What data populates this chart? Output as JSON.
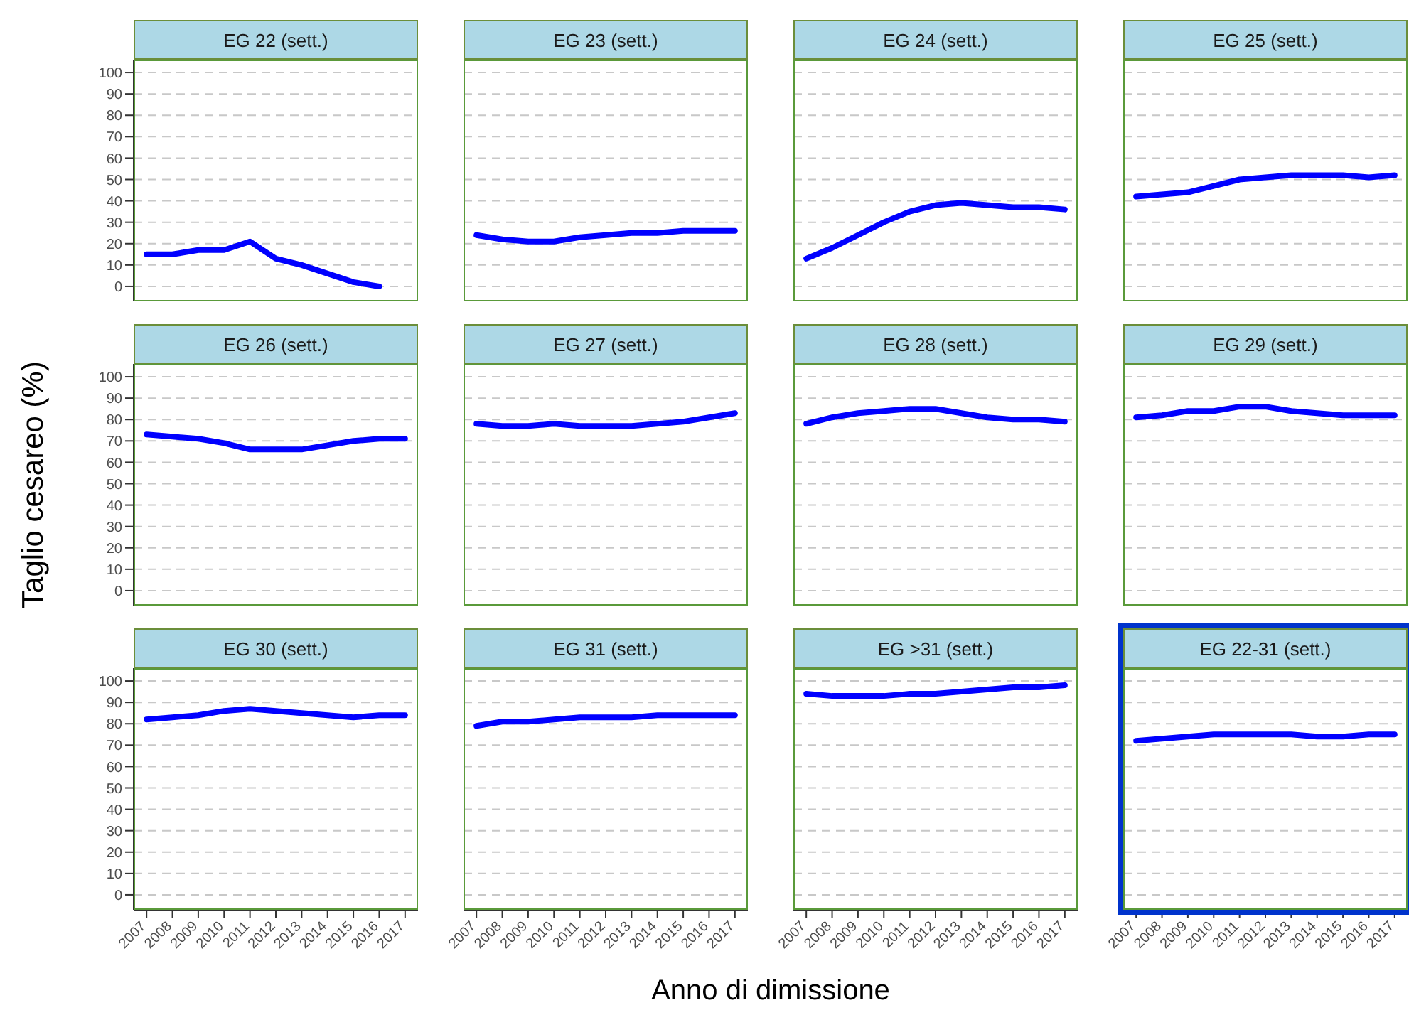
{
  "chart_data": [
    {
      "type": "line",
      "title": "EG 22 (sett.)",
      "x": [
        2007,
        2008,
        2009,
        2010,
        2011,
        2012,
        2013,
        2014,
        2015,
        2016
      ],
      "values": [
        15,
        15,
        17,
        17,
        21,
        13,
        10,
        6,
        2,
        0
      ],
      "color": "#0000ff",
      "xlim": [
        2006.5,
        2017.5
      ],
      "xticks": [
        2007,
        2008,
        2009,
        2010,
        2011,
        2012,
        2013,
        2014,
        2015,
        2016,
        2017
      ],
      "ylim": [
        -7,
        106
      ],
      "yticks": [
        0,
        10,
        20,
        30,
        40,
        50,
        60,
        70,
        80,
        90,
        100
      ],
      "grid": "y",
      "tick_labels": "y"
    },
    {
      "type": "line",
      "title": "EG 23 (sett.)",
      "x": [
        2007,
        2008,
        2009,
        2010,
        2011,
        2012,
        2013,
        2014,
        2015,
        2016,
        2017
      ],
      "values": [
        24,
        22,
        21,
        21,
        23,
        24,
        25,
        25,
        26,
        26,
        26
      ],
      "color": "#0000ff",
      "xlim": [
        2006.5,
        2017.5
      ],
      "xticks": [
        2007,
        2008,
        2009,
        2010,
        2011,
        2012,
        2013,
        2014,
        2015,
        2016,
        2017
      ],
      "ylim": [
        -7,
        106
      ],
      "yticks": [
        0,
        10,
        20,
        30,
        40,
        50,
        60,
        70,
        80,
        90,
        100
      ],
      "grid": "y",
      "tick_labels": false
    },
    {
      "type": "line",
      "title": "EG 24 (sett.)",
      "x": [
        2007,
        2008,
        2009,
        2010,
        2011,
        2012,
        2013,
        2014,
        2015,
        2016,
        2017
      ],
      "values": [
        13,
        18,
        24,
        30,
        35,
        38,
        39,
        38,
        37,
        37,
        36
      ],
      "color": "#0000ff",
      "xlim": [
        2006.5,
        2017.5
      ],
      "xticks": [
        2007,
        2008,
        2009,
        2010,
        2011,
        2012,
        2013,
        2014,
        2015,
        2016,
        2017
      ],
      "ylim": [
        -7,
        106
      ],
      "yticks": [
        0,
        10,
        20,
        30,
        40,
        50,
        60,
        70,
        80,
        90,
        100
      ],
      "grid": "y",
      "tick_labels": false
    },
    {
      "type": "line",
      "title": "EG 25 (sett.)",
      "x": [
        2007,
        2008,
        2009,
        2010,
        2011,
        2012,
        2013,
        2014,
        2015,
        2016,
        2017
      ],
      "values": [
        42,
        43,
        44,
        47,
        50,
        51,
        52,
        52,
        52,
        51,
        52
      ],
      "color": "#0000ff",
      "xlim": [
        2006.5,
        2017.5
      ],
      "xticks": [
        2007,
        2008,
        2009,
        2010,
        2011,
        2012,
        2013,
        2014,
        2015,
        2016,
        2017
      ],
      "ylim": [
        -7,
        106
      ],
      "yticks": [
        0,
        10,
        20,
        30,
        40,
        50,
        60,
        70,
        80,
        90,
        100
      ],
      "grid": "y",
      "tick_labels": false
    },
    {
      "type": "line",
      "title": "EG 26 (sett.)",
      "ylabel": "Taglio cesareo (%)",
      "x": [
        2007,
        2008,
        2009,
        2010,
        2011,
        2012,
        2013,
        2014,
        2015,
        2016,
        2017
      ],
      "values": [
        73,
        72,
        71,
        69,
        66,
        66,
        66,
        68,
        70,
        71,
        71
      ],
      "color": "#0000ff",
      "xlim": [
        2006.5,
        2017.5
      ],
      "xticks": [
        2007,
        2008,
        2009,
        2010,
        2011,
        2012,
        2013,
        2014,
        2015,
        2016,
        2017
      ],
      "ylim": [
        -7,
        106
      ],
      "yticks": [
        0,
        10,
        20,
        30,
        40,
        50,
        60,
        70,
        80,
        90,
        100
      ],
      "grid": "y",
      "tick_labels": "y"
    },
    {
      "type": "line",
      "title": "EG 27 (sett.)",
      "x": [
        2007,
        2008,
        2009,
        2010,
        2011,
        2012,
        2013,
        2014,
        2015,
        2016,
        2017
      ],
      "values": [
        78,
        77,
        77,
        78,
        77,
        77,
        77,
        78,
        79,
        81,
        83
      ],
      "color": "#0000ff",
      "xlim": [
        2006.5,
        2017.5
      ],
      "xticks": [
        2007,
        2008,
        2009,
        2010,
        2011,
        2012,
        2013,
        2014,
        2015,
        2016,
        2017
      ],
      "ylim": [
        -7,
        106
      ],
      "yticks": [
        0,
        10,
        20,
        30,
        40,
        50,
        60,
        70,
        80,
        90,
        100
      ],
      "grid": "y",
      "tick_labels": false
    },
    {
      "type": "line",
      "title": "EG 28 (sett.)",
      "x": [
        2007,
        2008,
        2009,
        2010,
        2011,
        2012,
        2013,
        2014,
        2015,
        2016,
        2017
      ],
      "values": [
        78,
        81,
        83,
        84,
        85,
        85,
        83,
        81,
        80,
        80,
        79
      ],
      "color": "#0000ff",
      "xlim": [
        2006.5,
        2017.5
      ],
      "xticks": [
        2007,
        2008,
        2009,
        2010,
        2011,
        2012,
        2013,
        2014,
        2015,
        2016,
        2017
      ],
      "ylim": [
        -7,
        106
      ],
      "yticks": [
        0,
        10,
        20,
        30,
        40,
        50,
        60,
        70,
        80,
        90,
        100
      ],
      "grid": "y",
      "tick_labels": false
    },
    {
      "type": "line",
      "title": "EG 29 (sett.)",
      "x": [
        2007,
        2008,
        2009,
        2010,
        2011,
        2012,
        2013,
        2014,
        2015,
        2016,
        2017
      ],
      "values": [
        81,
        82,
        84,
        84,
        86,
        86,
        84,
        83,
        82,
        82,
        82
      ],
      "color": "#0000ff",
      "xlim": [
        2006.5,
        2017.5
      ],
      "xticks": [
        2007,
        2008,
        2009,
        2010,
        2011,
        2012,
        2013,
        2014,
        2015,
        2016,
        2017
      ],
      "ylim": [
        -7,
        106
      ],
      "yticks": [
        0,
        10,
        20,
        30,
        40,
        50,
        60,
        70,
        80,
        90,
        100
      ],
      "grid": "y",
      "tick_labels": false
    },
    {
      "type": "line",
      "title": "EG 30 (sett.)",
      "x": [
        2007,
        2008,
        2009,
        2010,
        2011,
        2012,
        2013,
        2014,
        2015,
        2016,
        2017
      ],
      "values": [
        82,
        83,
        84,
        86,
        87,
        86,
        85,
        84,
        83,
        84,
        84
      ],
      "color": "#0000ff",
      "xlim": [
        2006.5,
        2017.5
      ],
      "xticks": [
        2007,
        2008,
        2009,
        2010,
        2011,
        2012,
        2013,
        2014,
        2015,
        2016,
        2017
      ],
      "ylim": [
        -7,
        106
      ],
      "yticks": [
        0,
        10,
        20,
        30,
        40,
        50,
        60,
        70,
        80,
        90,
        100
      ],
      "grid": "y"
    },
    {
      "type": "line",
      "title": "EG 31 (sett.)",
      "xlabel": "Anno di dimissione",
      "x": [
        2007,
        2008,
        2009,
        2010,
        2011,
        2012,
        2013,
        2014,
        2015,
        2016,
        2017
      ],
      "values": [
        79,
        81,
        81,
        82,
        83,
        83,
        83,
        84,
        84,
        84,
        84
      ],
      "color": "#0000ff",
      "xlim": [
        2006.5,
        2017.5
      ],
      "xticks": [
        2007,
        2008,
        2009,
        2010,
        2011,
        2012,
        2013,
        2014,
        2015,
        2016,
        2017
      ],
      "ylim": [
        -7,
        106
      ],
      "yticks": [
        0,
        10,
        20,
        30,
        40,
        50,
        60,
        70,
        80,
        90,
        100
      ],
      "grid": "y",
      "tick_labels": "x"
    },
    {
      "type": "line",
      "title": "EG >31 (sett.)",
      "x": [
        2007,
        2008,
        2009,
        2010,
        2011,
        2012,
        2013,
        2014,
        2015,
        2016,
        2017
      ],
      "values": [
        94,
        93,
        93,
        93,
        94,
        94,
        95,
        96,
        97,
        97,
        98
      ],
      "color": "#0000ff",
      "xlim": [
        2006.5,
        2017.5
      ],
      "xticks": [
        2007,
        2008,
        2009,
        2010,
        2011,
        2012,
        2013,
        2014,
        2015,
        2016,
        2017
      ],
      "ylim": [
        -7,
        106
      ],
      "yticks": [
        0,
        10,
        20,
        30,
        40,
        50,
        60,
        70,
        80,
        90,
        100
      ],
      "grid": "y",
      "tick_labels": "x"
    },
    {
      "type": "line",
      "title": "EG 22-31 (sett.)",
      "x": [
        2007,
        2008,
        2009,
        2010,
        2011,
        2012,
        2013,
        2014,
        2015,
        2016,
        2017
      ],
      "values": [
        72,
        73,
        74,
        75,
        75,
        75,
        75,
        74,
        74,
        75,
        75
      ],
      "color": "#0000ff",
      "xlim": [
        2006.5,
        2017.5
      ],
      "xticks": [
        2007,
        2008,
        2009,
        2010,
        2011,
        2012,
        2013,
        2014,
        2015,
        2016,
        2017
      ],
      "ylim": [
        -7,
        106
      ],
      "yticks": [
        0,
        10,
        20,
        30,
        40,
        50,
        60,
        70,
        80,
        90,
        100
      ],
      "grid": "y",
      "tick_labels": "x"
    }
  ]
}
